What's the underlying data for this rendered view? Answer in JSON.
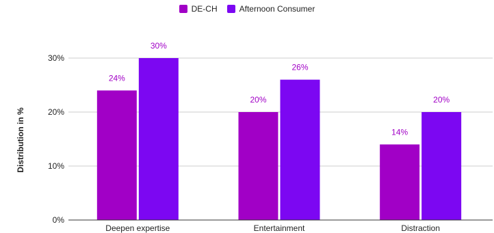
{
  "chart_data": {
    "type": "bar",
    "categories": [
      "Deepen expertise",
      "Entertainment",
      "Distraction"
    ],
    "series": [
      {
        "name": "DE-CH",
        "values": [
          24,
          20,
          14
        ],
        "color": "#a100c6"
      },
      {
        "name": "Afternoon Consumer",
        "values": [
          30,
          26,
          20
        ],
        "color": "#7c07f2"
      }
    ],
    "ylabel": "Distribution in %",
    "yticks": [
      "0%",
      "10%",
      "20%",
      "30%"
    ],
    "ylim": [
      0,
      30
    ],
    "grid": true,
    "legend": "top-center",
    "data_labels": {
      "DE-CH": [
        "24%",
        "20%",
        "14%"
      ],
      "Afternoon Consumer": [
        "30%",
        "26%",
        "20%"
      ]
    },
    "label_color": "#a100c6"
  }
}
